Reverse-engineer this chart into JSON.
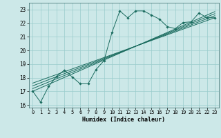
{
  "title": "",
  "xlabel": "Humidex (Indice chaleur)",
  "xlim": [
    -0.5,
    23.5
  ],
  "ylim": [
    15.8,
    23.5
  ],
  "yticks": [
    16,
    17,
    18,
    19,
    20,
    21,
    22,
    23
  ],
  "xticks": [
    0,
    1,
    2,
    3,
    4,
    5,
    6,
    7,
    8,
    9,
    10,
    11,
    12,
    13,
    14,
    15,
    16,
    17,
    18,
    19,
    20,
    21,
    22,
    23
  ],
  "bg_color": "#cce8e8",
  "grid_color": "#99cccc",
  "line_color": "#1a6b5e",
  "series_main": {
    "x": [
      0,
      1,
      2,
      3,
      4,
      5,
      6,
      7,
      8,
      9,
      10,
      11,
      12,
      13,
      14,
      15,
      16,
      17,
      18,
      19,
      20,
      21,
      22,
      23
    ],
    "y": [
      17.0,
      16.2,
      17.35,
      18.1,
      18.55,
      18.05,
      17.55,
      17.55,
      18.6,
      19.25,
      21.3,
      22.9,
      22.4,
      22.9,
      22.9,
      22.6,
      22.3,
      21.75,
      21.6,
      22.05,
      22.1,
      22.75,
      22.4,
      22.4
    ]
  },
  "series_reg1": [
    0,
    23,
    17.6,
    22.4
  ],
  "series_reg2": [
    0,
    23,
    17.4,
    22.55
  ],
  "series_reg3": [
    0,
    23,
    17.2,
    22.7
  ],
  "series_reg4": [
    0,
    23,
    17.0,
    22.85
  ]
}
